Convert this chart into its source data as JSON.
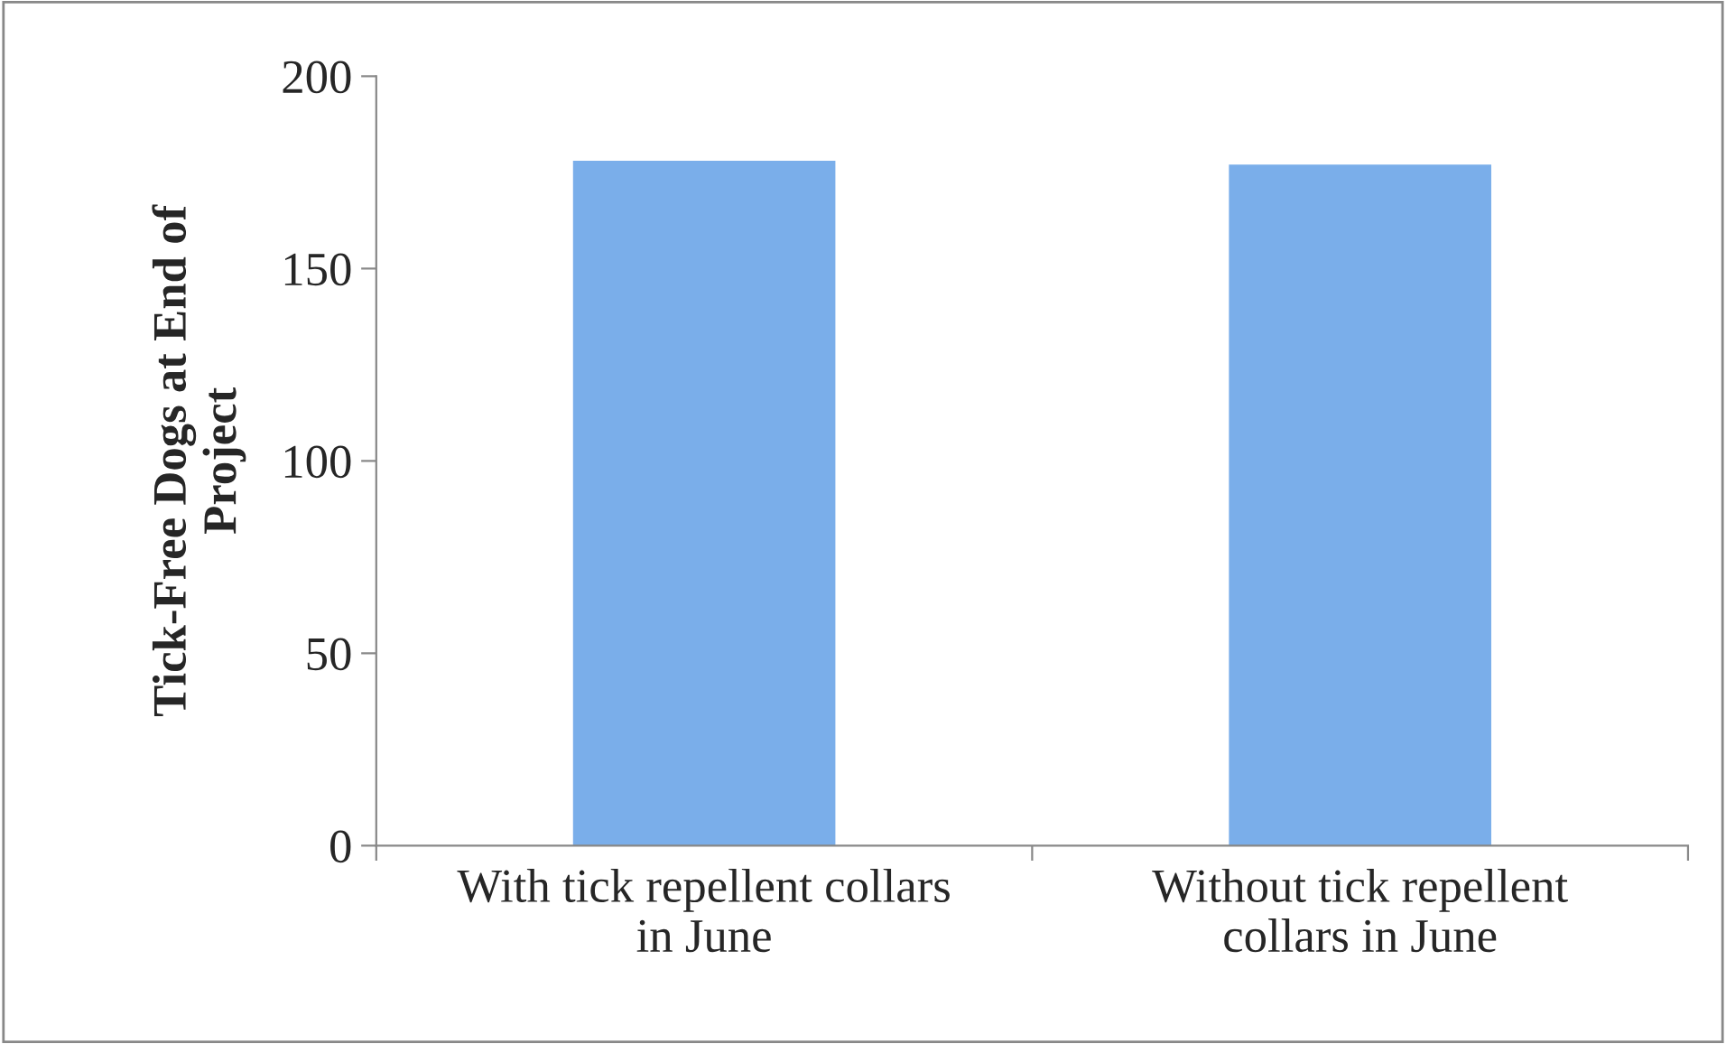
{
  "chart_data": {
    "type": "bar",
    "ylabel": "Tick-Free Dogs at End of\nProject",
    "categories": [
      "With tick repellent collars\nin June",
      "Without tick repellent\ncollars in June"
    ],
    "values": [
      178,
      177
    ],
    "color": "#7aaeea",
    "ylim": [
      0,
      200
    ],
    "yticks": [
      0,
      50,
      100,
      150,
      200
    ],
    "grid": false,
    "legend": false
  }
}
